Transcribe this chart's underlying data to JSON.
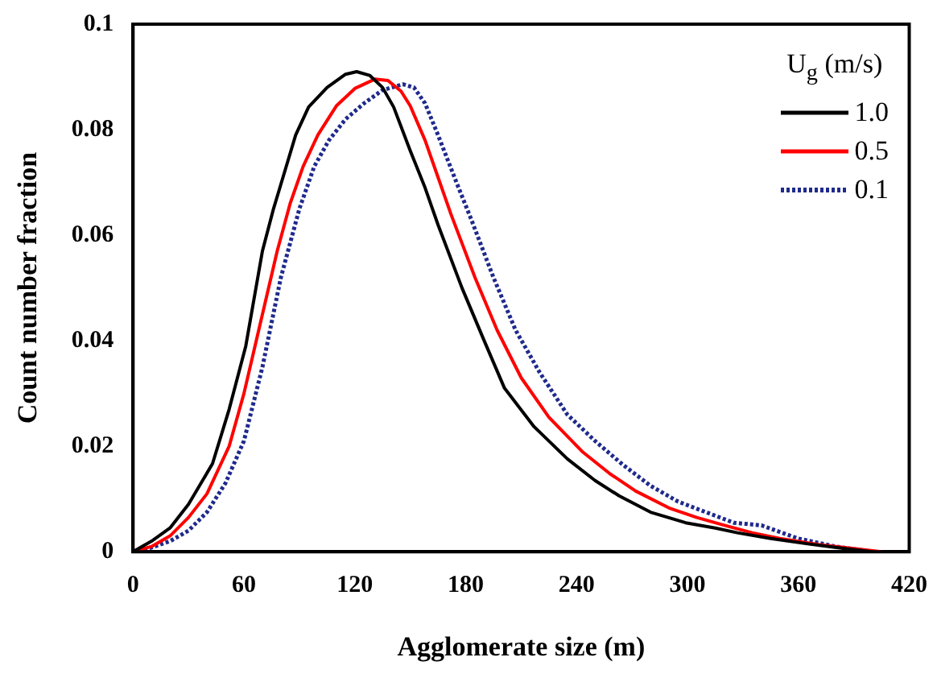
{
  "chart_data": {
    "type": "line",
    "xlabel": "Agglomerate size (m)",
    "ylabel": "Count number fraction",
    "legend_title": "U$_{g}$ (m/s)",
    "legend": "top right",
    "grid": false,
    "marker": "none",
    "xlim": [
      0,
      420
    ],
    "xticks": [
      0,
      60,
      120,
      180,
      240,
      300,
      360,
      420
    ],
    "ylim": [
      0,
      0.1
    ],
    "yticks": [
      0,
      0.02,
      0.04,
      0.06,
      0.08,
      0.1
    ],
    "series": [
      {
        "name": "1.0",
        "color": "#000000",
        "line_style": "solid",
        "x": [
          0,
          10,
          20,
          30,
          43,
          52,
          61,
          70,
          76,
          82,
          88,
          95,
          105,
          115,
          121,
          128,
          135,
          141,
          150,
          158,
          165,
          178,
          190,
          201,
          217,
          235,
          250,
          263,
          280,
          299,
          315,
          327,
          345,
          365,
          385,
          400
        ],
        "values": [
          0,
          0.002,
          0.0045,
          0.009,
          0.0167,
          0.027,
          0.039,
          0.057,
          0.065,
          0.072,
          0.079,
          0.0843,
          0.088,
          0.0905,
          0.091,
          0.0903,
          0.088,
          0.0843,
          0.076,
          0.069,
          0.062,
          0.05,
          0.04,
          0.031,
          0.0237,
          0.0176,
          0.0135,
          0.0106,
          0.0075,
          0.0055,
          0.0045,
          0.0036,
          0.0025,
          0.0015,
          0.0006,
          0
        ]
      },
      {
        "name": "0.5",
        "color": "#ff0000",
        "line_style": "solid",
        "x": [
          0,
          10,
          20,
          30,
          40,
          52,
          60,
          68,
          78,
          85,
          92,
          100,
          110,
          120,
          131,
          138,
          145,
          150,
          158,
          165,
          172,
          185,
          197,
          210,
          225,
          243,
          258,
          272,
          290,
          305,
          320,
          335,
          350,
          370,
          390,
          405
        ],
        "values": [
          0,
          0.001,
          0.003,
          0.0065,
          0.011,
          0.02,
          0.03,
          0.042,
          0.057,
          0.066,
          0.073,
          0.079,
          0.0845,
          0.0878,
          0.0896,
          0.0893,
          0.0873,
          0.0845,
          0.078,
          0.071,
          0.064,
          0.052,
          0.042,
          0.033,
          0.0255,
          0.019,
          0.0148,
          0.0115,
          0.0083,
          0.0065,
          0.005,
          0.0036,
          0.0025,
          0.0014,
          0.0006,
          0
        ]
      },
      {
        "name": "0.1",
        "color": "#1f2a8c",
        "line_style": "dotted",
        "x": [
          0,
          10,
          20,
          30,
          40,
          50,
          60,
          70,
          80,
          90,
          98,
          106,
          115,
          125,
          135,
          146,
          152,
          158,
          165,
          175,
          183,
          195,
          207,
          220,
          235,
          250,
          265,
          280,
          295,
          310,
          325,
          340,
          360,
          380,
          400
        ],
        "values": [
          0,
          0.0008,
          0.002,
          0.004,
          0.0075,
          0.013,
          0.021,
          0.035,
          0.052,
          0.065,
          0.073,
          0.078,
          0.082,
          0.085,
          0.0875,
          0.0886,
          0.088,
          0.085,
          0.079,
          0.07,
          0.063,
          0.052,
          0.042,
          0.034,
          0.026,
          0.021,
          0.0165,
          0.0125,
          0.0095,
          0.0075,
          0.0055,
          0.005,
          0.0025,
          0.001,
          0
        ]
      }
    ]
  }
}
